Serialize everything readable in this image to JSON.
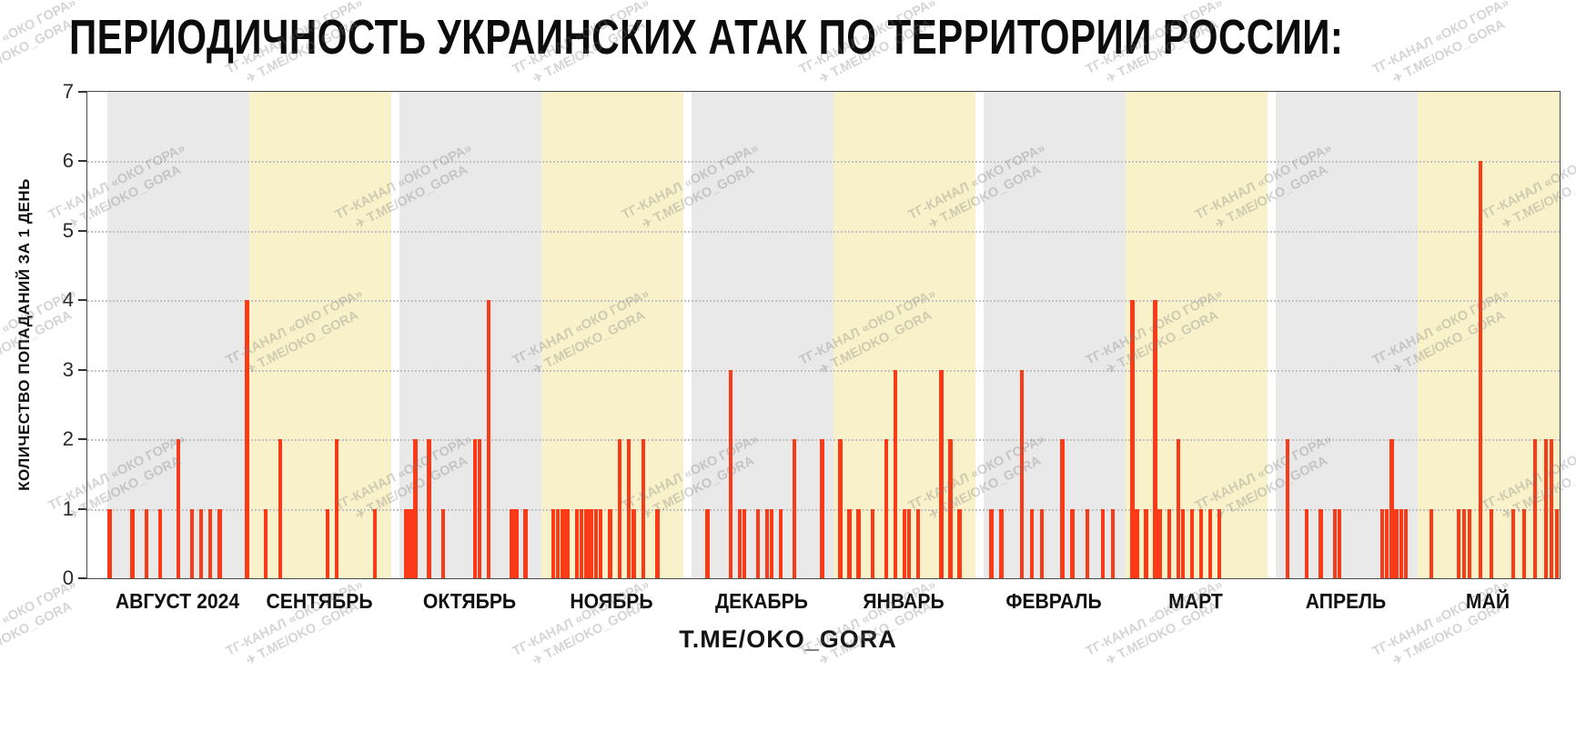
{
  "page": {
    "title": "ПЕРИОДИЧНОСТЬ УКРАИНСКИХ АТАК ПО ТЕРРИТОРИИ РОССИИ:",
    "footer": "T.ME/OKO_GORA",
    "watermark": {
      "line1": "ТГ-КАНАЛ «ОКО ГОРА»",
      "line2": "T.ME/OKO_GORA",
      "plane_icon": "✈"
    }
  },
  "chart_data": {
    "type": "bar",
    "title": "ПЕРИОДИЧНОСТЬ УКРАИНСКИХ АТАК ПО ТЕРРИТОРИИ РОССИИ:",
    "xlabel": "",
    "ylabel": "КОЛИЧЕСТВО ПОПАДАНИЙ ЗА 1 ДЕНЬ",
    "ylim": [
      0,
      7
    ],
    "yticks": [
      0,
      1,
      2,
      3,
      4,
      5,
      6,
      7
    ],
    "grid": "horizontal-dotted",
    "legend": "none",
    "bar_color": "#fb3a17",
    "band_colors": [
      "#e9e9e9",
      "#f8f1ca"
    ],
    "caption": "T.ME/OKO_GORA",
    "months": [
      {
        "label": "АВГУСТ 2024",
        "band": "gray",
        "days": [
          1,
          0,
          0,
          0,
          0,
          1,
          0,
          0,
          1,
          0,
          0,
          1,
          0,
          0,
          0,
          2,
          0,
          0,
          1,
          0,
          1,
          0,
          1,
          0,
          1,
          0,
          0,
          0,
          0,
          0,
          4
        ]
      },
      {
        "label": "СЕНТЯБРЬ",
        "band": "yellow",
        "days": [
          0,
          0,
          0,
          1,
          0,
          0,
          2,
          0,
          0,
          0,
          0,
          0,
          0,
          0,
          0,
          0,
          1,
          0,
          2,
          0,
          0,
          0,
          0,
          0,
          0,
          0,
          1,
          0,
          0,
          0
        ]
      },
      {
        "label": "ОКТЯБРЬ",
        "band": "gray",
        "days": [
          0,
          1,
          1,
          2,
          0,
          0,
          2,
          0,
          0,
          1,
          0,
          0,
          0,
          0,
          0,
          0,
          2,
          2,
          0,
          4,
          0,
          0,
          0,
          0,
          1,
          1,
          0,
          1,
          0,
          0,
          0
        ]
      },
      {
        "label": "НОЯБРЬ",
        "band": "yellow",
        "days": [
          0,
          0,
          1,
          1,
          1,
          1,
          0,
          1,
          1,
          1,
          1,
          1,
          1,
          0,
          1,
          0,
          2,
          0,
          2,
          1,
          0,
          2,
          0,
          0,
          1,
          0,
          0,
          0,
          0,
          0
        ]
      },
      {
        "label": "ДЕКАБРЬ",
        "band": "gray",
        "days": [
          0,
          0,
          0,
          1,
          0,
          0,
          0,
          0,
          3,
          0,
          1,
          1,
          0,
          0,
          1,
          0,
          1,
          1,
          0,
          1,
          0,
          0,
          2,
          0,
          0,
          0,
          0,
          0,
          2,
          0,
          0
        ]
      },
      {
        "label": "ЯНВАРЬ",
        "band": "yellow",
        "days": [
          0,
          2,
          0,
          1,
          0,
          1,
          0,
          0,
          1,
          0,
          0,
          2,
          0,
          3,
          0,
          1,
          1,
          0,
          1,
          0,
          0,
          0,
          0,
          3,
          0,
          2,
          0,
          1,
          0,
          0,
          0
        ]
      },
      {
        "label": "ФЕВРАЛЬ",
        "band": "gray",
        "days": [
          0,
          1,
          0,
          1,
          0,
          0,
          0,
          3,
          0,
          1,
          0,
          1,
          0,
          0,
          0,
          2,
          0,
          1,
          0,
          0,
          1,
          0,
          0,
          1,
          0,
          1,
          0,
          0
        ]
      },
      {
        "label": "МАРТ",
        "band": "yellow",
        "days": [
          0,
          4,
          1,
          0,
          1,
          0,
          4,
          1,
          0,
          1,
          0,
          2,
          1,
          0,
          1,
          0,
          1,
          0,
          1,
          0,
          1,
          0,
          0,
          0,
          0,
          0,
          0,
          0,
          0,
          0,
          0
        ]
      },
      {
        "label": "АПРЕЛЬ",
        "band": "gray",
        "days": [
          0,
          0,
          2,
          0,
          0,
          0,
          1,
          0,
          0,
          1,
          0,
          0,
          1,
          1,
          0,
          0,
          0,
          0,
          0,
          0,
          0,
          0,
          1,
          1,
          2,
          1,
          1,
          1,
          0,
          0
        ]
      },
      {
        "label": "МАЙ",
        "band": "yellow",
        "days": [
          0,
          0,
          1,
          0,
          0,
          0,
          0,
          1,
          1,
          1,
          0,
          6,
          0,
          1,
          0,
          0,
          0,
          1,
          0,
          1,
          0,
          2,
          0,
          2,
          2,
          1
        ]
      }
    ]
  }
}
